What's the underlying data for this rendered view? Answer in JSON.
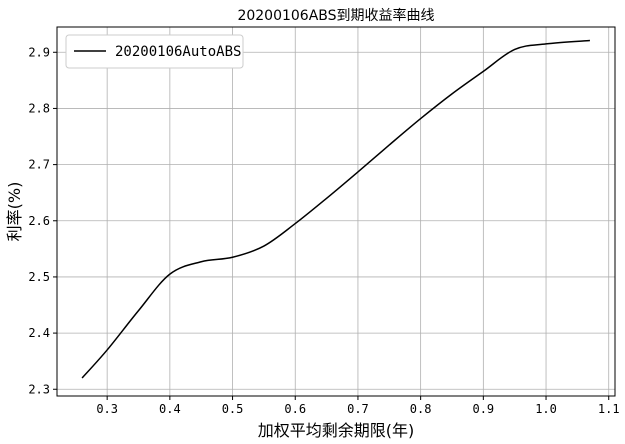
{
  "chart_data": {
    "type": "line",
    "title": "20200106ABS到期收益率曲线",
    "xlabel": "加权平均剩余期限(年)",
    "ylabel": "利率(%)",
    "xlim": [
      0.22,
      1.11
    ],
    "ylim": [
      2.288,
      2.945
    ],
    "xticks": [
      0.3,
      0.4,
      0.5,
      0.6,
      0.7,
      0.8,
      0.9,
      1.0,
      1.1
    ],
    "xtick_labels": [
      "0.3",
      "0.4",
      "0.5",
      "0.6",
      "0.7",
      "0.8",
      "0.9",
      "1.0",
      "1.1"
    ],
    "yticks": [
      2.3,
      2.4,
      2.5,
      2.6,
      2.7,
      2.8,
      2.9
    ],
    "ytick_labels": [
      "2.3",
      "2.4",
      "2.5",
      "2.6",
      "2.7",
      "2.8",
      "2.9"
    ],
    "grid": true,
    "legend": {
      "placement": "top-left"
    },
    "series": [
      {
        "name": "20200106AutoABS",
        "color": "#000000",
        "x": [
          0.26,
          0.3,
          0.35,
          0.4,
          0.45,
          0.5,
          0.55,
          0.6,
          0.65,
          0.7,
          0.75,
          0.8,
          0.85,
          0.9,
          0.95,
          1.0,
          1.07
        ],
        "y": [
          2.32,
          2.37,
          2.44,
          2.505,
          2.527,
          2.535,
          2.555,
          2.595,
          2.64,
          2.687,
          2.735,
          2.782,
          2.826,
          2.866,
          2.905,
          2.915,
          2.921
        ]
      }
    ]
  }
}
